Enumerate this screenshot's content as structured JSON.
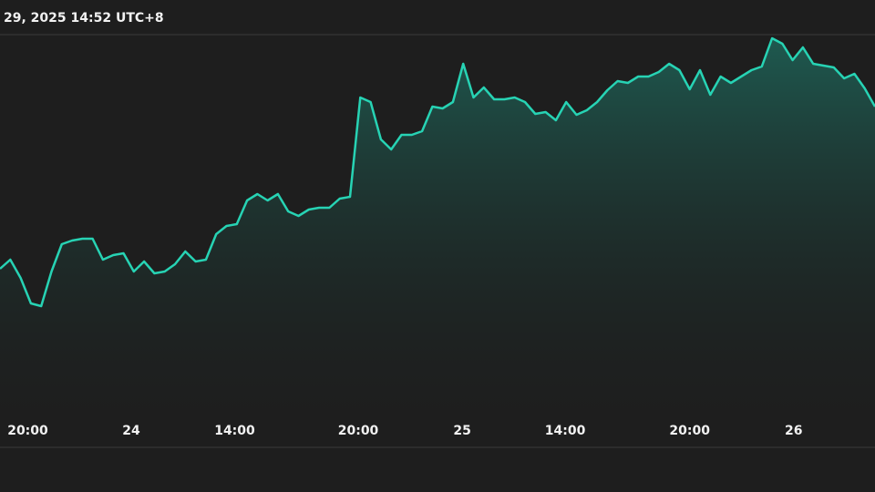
{
  "chart_data": {
    "type": "area",
    "title": "29, 2025 14:52 UTC+8",
    "color": "#27d3b4",
    "x": [
      0,
      1,
      2,
      3,
      4,
      5,
      6,
      7,
      8,
      9,
      10,
      11,
      12,
      13,
      14,
      15,
      16,
      17,
      18,
      19,
      20,
      21,
      22,
      23,
      24,
      25,
      26,
      27,
      28,
      29,
      30,
      31,
      32,
      33,
      34,
      35,
      36,
      37,
      38,
      39,
      40,
      41,
      42,
      43,
      44,
      45,
      46,
      47,
      48,
      49,
      50,
      51,
      52,
      53,
      54,
      55,
      56,
      57,
      58,
      59,
      60,
      61,
      62,
      63,
      64,
      65,
      66,
      67,
      68,
      69,
      70,
      71,
      72,
      73,
      74,
      75,
      76,
      77,
      78,
      79,
      80,
      81,
      82,
      83,
      84,
      85
    ],
    "values": [
      195,
      205,
      185,
      157,
      154,
      192,
      222,
      226,
      228,
      228,
      205,
      210,
      212,
      192,
      203,
      190,
      192,
      200,
      214,
      203,
      205,
      233,
      242,
      244,
      270,
      277,
      270,
      277,
      258,
      253,
      260,
      262,
      262,
      272,
      274,
      383,
      378,
      337,
      326,
      342,
      342,
      346,
      373,
      371,
      378,
      420,
      383,
      394,
      381,
      381,
      383,
      378,
      365,
      367,
      358,
      378,
      364,
      369,
      378,
      391,
      401,
      399,
      406,
      406,
      411,
      420,
      413,
      392,
      413,
      386,
      406,
      399,
      406,
      413,
      417,
      448,
      442,
      424,
      438,
      420,
      418,
      416,
      404,
      409,
      393,
      373
    ],
    "xlim": [
      0,
      85
    ],
    "ylim": [
      0,
      452
    ],
    "xticks": [
      {
        "value": 2.7,
        "label": "20:00"
      },
      {
        "value": 12.75,
        "label": "24"
      },
      {
        "value": 22.8,
        "label": "14:00"
      },
      {
        "value": 34.8,
        "label": "20:00"
      },
      {
        "value": 44.9,
        "label": "25"
      },
      {
        "value": 54.9,
        "label": "14:00"
      },
      {
        "value": 67.0,
        "label": "20:00"
      },
      {
        "value": 77.1,
        "label": "26"
      }
    ]
  }
}
